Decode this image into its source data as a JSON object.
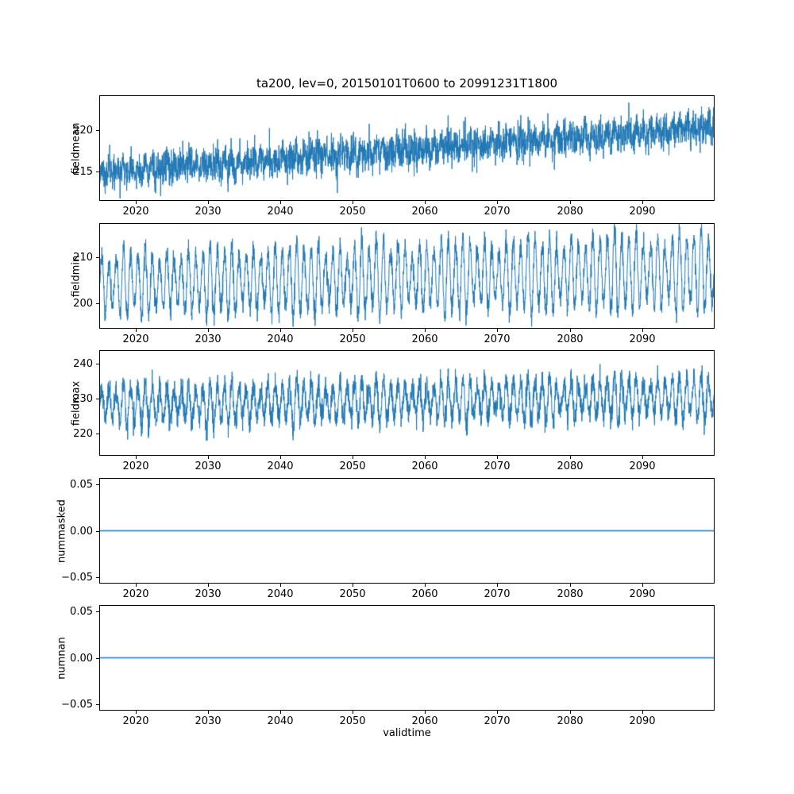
{
  "title": "ta200, lev=0, 20150101T0600 to 20991231T1800",
  "line_color": "#1f77b4",
  "x_axis": {
    "label": "validtime",
    "lim": [
      2015,
      2100
    ],
    "tick_values": [
      2020,
      2030,
      2040,
      2050,
      2060,
      2070,
      2080,
      2090
    ],
    "tick_labels": [
      "2020",
      "2030",
      "2040",
      "2050",
      "2060",
      "2070",
      "2080",
      "2090"
    ]
  },
  "chart_data": [
    {
      "type": "line",
      "name": "fieldmean",
      "ylabel": "fieldmean",
      "ylim": [
        211.5,
        224.2
      ],
      "ytick_values": [
        215,
        220
      ],
      "ytick_labels": [
        "215",
        "220"
      ],
      "series": {
        "kind": "noisy_trend",
        "color": "#1f77b4",
        "n_points": 3200,
        "x_start": 2015,
        "x_end": 2100,
        "base_start": 214.8,
        "base_end": 220.4,
        "seasonal_amp": 0.6,
        "noise_sigma": 1.05,
        "seed": 11
      },
      "description": "Dense noisy series rising from ~215 in 2015 to ~220 by 2099, overall range ~212-223"
    },
    {
      "type": "line",
      "name": "fieldmin",
      "ylabel": "fieldmin",
      "ylim": [
        194.5,
        217.5
      ],
      "ytick_values": [
        200,
        210
      ],
      "ytick_labels": [
        "200",
        "210"
      ],
      "series": {
        "kind": "seasonal",
        "color": "#1f77b4",
        "n_points": 3400,
        "x_start": 2015,
        "x_end": 2100,
        "mid_start": 204.2,
        "mid_end": 207.0,
        "amp_start": 7.2,
        "amp_end": 8.8,
        "noise_sigma": 1.2,
        "seed": 22
      },
      "description": "Strong annual oscillation between ~196 and ~212 early, widening to ~198-216 by 2099"
    },
    {
      "type": "line",
      "name": "fieldmax",
      "ylabel": "fieldmax",
      "ylim": [
        213.5,
        244.0
      ],
      "ytick_values": [
        220,
        230,
        240
      ],
      "ytick_labels": [
        "220",
        "230",
        "240"
      ],
      "series": {
        "kind": "seasonal",
        "color": "#1f77b4",
        "n_points": 3400,
        "x_start": 2015,
        "x_end": 2100,
        "mid_start": 228.0,
        "mid_end": 230.5,
        "amp_start": 5.6,
        "amp_end": 6.4,
        "noise_sigma": 1.8,
        "seed": 33
      },
      "description": "Dense oscillating band ~219-241 with spikes to ~242, lower envelope rising slightly"
    },
    {
      "type": "line",
      "name": "nummasked",
      "ylabel": "nummasked",
      "ylim": [
        -0.0565,
        0.0565
      ],
      "ytick_values": [
        -0.05,
        0.0,
        0.05
      ],
      "ytick_labels": [
        "−0.05",
        "0.00",
        "0.05"
      ],
      "series": {
        "kind": "constant",
        "color": "#1f77b4",
        "n_points": 200,
        "x_start": 2015,
        "x_end": 2100,
        "value": 0.0,
        "seed": 44
      },
      "description": "Constant flat line at 0.00 for the whole period"
    },
    {
      "type": "line",
      "name": "numnan",
      "ylabel": "numnan",
      "ylim": [
        -0.0565,
        0.0565
      ],
      "ytick_values": [
        -0.05,
        0.0,
        0.05
      ],
      "ytick_labels": [
        "−0.05",
        "0.00",
        "0.05"
      ],
      "series": {
        "kind": "constant",
        "color": "#1f77b4",
        "n_points": 200,
        "x_start": 2015,
        "x_end": 2100,
        "value": 0.0,
        "seed": 55
      },
      "description": "Constant flat line at 0.00 for the whole period"
    }
  ]
}
